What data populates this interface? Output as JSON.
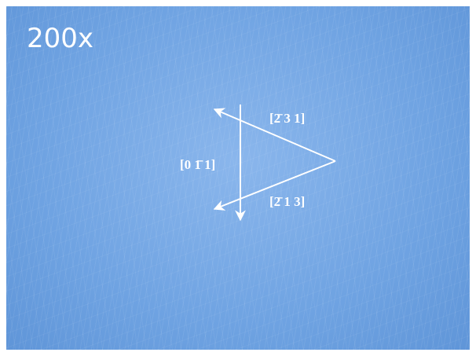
{
  "magnification": "200x",
  "directions": [
    "[2̄ 3 1]",
    "[0 1̄ 1]",
    "[2̄ 1 3]"
  ]
}
